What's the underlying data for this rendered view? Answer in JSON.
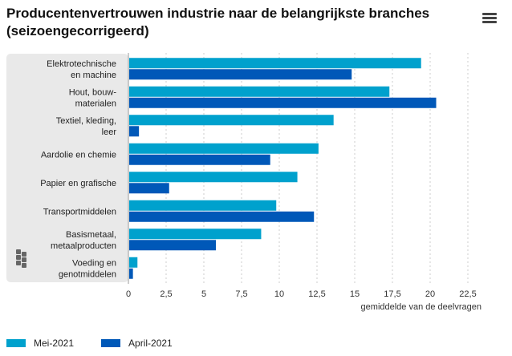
{
  "header": {
    "title": "Producentenvertrouwen industrie naar de belangrijkste branches (seizoengecorrigeerd)",
    "menu_icon": "hamburger-menu-icon"
  },
  "logo": {
    "icon": "cbs-logo-icon"
  },
  "colors": {
    "series_mei": "#00A1CD",
    "series_april": "#0058B8",
    "label_panel": "#e9e9e9",
    "gridline": "#cccccc",
    "axis_text": "#333333"
  },
  "chart_data": {
    "type": "bar",
    "orientation": "horizontal",
    "title": "Producentenvertrouwen industrie naar de belangrijkste branches (seizoengecorrigeerd)",
    "xlabel": "gemiddelde van de deelvragen",
    "ylabel": "",
    "xlim": [
      0,
      25
    ],
    "xticks": [
      0,
      2.5,
      5,
      7.5,
      10,
      12.5,
      15,
      17.5,
      20,
      22.5
    ],
    "xtick_labels": [
      "0",
      "2,5",
      "5",
      "7,5",
      "10",
      "12,5",
      "15",
      "17,5",
      "20",
      "22,5"
    ],
    "grid": true,
    "legend_position": "bottom-left",
    "categories": [
      [
        "Elektrotechnische",
        "en machine"
      ],
      [
        "Hout, bouw-",
        "materialen"
      ],
      [
        "Textiel, kleding,",
        "leer"
      ],
      [
        "Aardolie en chemie"
      ],
      [
        "Papier en grafische"
      ],
      [
        "Transportmiddelen"
      ],
      [
        "Basismetaal,",
        "metaalproducten"
      ],
      [
        "Voeding en",
        "genotmiddelen"
      ]
    ],
    "series": [
      {
        "name": "Mei-2021",
        "color": "#00A1CD",
        "values": [
          19.4,
          17.3,
          13.6,
          12.6,
          11.2,
          9.8,
          8.8,
          0.6
        ]
      },
      {
        "name": "April-2021",
        "color": "#0058B8",
        "values": [
          14.8,
          20.4,
          0.7,
          9.4,
          2.7,
          12.3,
          5.8,
          0.3
        ]
      }
    ]
  }
}
